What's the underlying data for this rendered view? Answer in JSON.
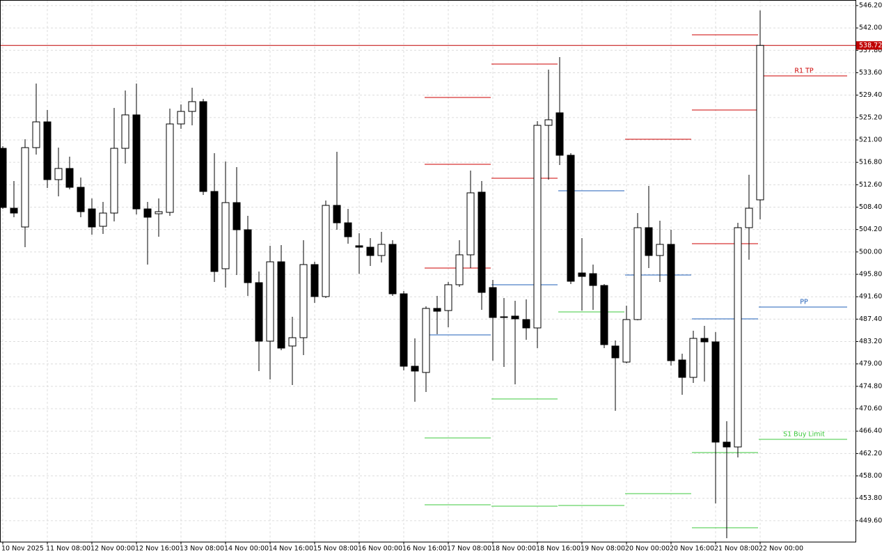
{
  "chart_data": {
    "type": "candlestick",
    "categories": [
      "10 Nov 2025",
      null,
      null,
      null,
      "11 Nov 08:00",
      null,
      null,
      null,
      "12 Nov 00:00",
      null,
      null,
      null,
      "12 Nov 16:00",
      null,
      null,
      null,
      "13 Nov 08:00",
      null,
      null,
      null,
      "14 Nov 00:00",
      null,
      null,
      null,
      "14 Nov 16:00",
      null,
      null,
      null,
      "15 Nov 08:00",
      null,
      null,
      null,
      "16 Nov 00:00",
      null,
      null,
      null,
      "16 Nov 16:00",
      null,
      null,
      null,
      "17 Nov 08:00",
      null,
      null,
      null,
      "18 Nov 00:00",
      null,
      null,
      null,
      "18 Nov 16:00",
      null,
      null,
      null,
      "19 Nov 08:00",
      null,
      null,
      null,
      "20 Nov 00:00",
      null,
      null,
      null,
      "20 Nov 16:00",
      null,
      null,
      null,
      "21 Nov 08:00",
      null,
      null,
      null,
      "22 Nov 00:00"
    ],
    "open": [
      519.43,
      508.2,
      504.68,
      519.56,
      524.39,
      513.56,
      515.65,
      512.12,
      508.07,
      504.81,
      507.29,
      519.43,
      525.7,
      508.07,
      507.16,
      507.42,
      524.0,
      526.35,
      528.18,
      511.34,
      496.85,
      509.25,
      504.16,
      494.24,
      483.27,
      498.15,
      482.36,
      483.92,
      497.63,
      491.63,
      508.73,
      505.46,
      501.16,
      500.89,
      499.33,
      501.42,
      492.15,
      478.57,
      477.4,
      489.41,
      489.01,
      493.85,
      499.46,
      511.21,
      493.32,
      487.71,
      487.97,
      487.32,
      485.75,
      523.74,
      526.09,
      518.13,
      496.06,
      495.93,
      493.71,
      482.36,
      479.35,
      487.32,
      504.55,
      499.33,
      501.42,
      479.74,
      476.48,
      483.79,
      483.14,
      464.34,
      463.43,
      504.55,
      509.77
    ],
    "high": [
      519.82,
      513.3,
      521.13,
      531.57,
      526.61,
      519.56,
      517.87,
      513.95,
      510.03,
      509.38,
      527.0,
      530.27,
      531.57,
      509.38,
      510.03,
      526.87,
      527.66,
      530.79,
      528.7,
      518.52,
      516.95,
      515.91,
      506.77,
      496.33,
      501.16,
      501.29,
      487.84,
      502.2,
      498.15,
      509.64,
      518.78,
      508.07,
      503.51,
      502.59,
      503.77,
      502.2,
      492.67,
      483.79,
      489.8,
      491.76,
      494.37,
      502.2,
      515.26,
      513.3,
      494.76,
      491.36,
      490.84,
      491.1,
      524.52,
      534.18,
      536.53,
      518.52,
      502.59,
      497.63,
      493.98,
      483.4,
      489.93,
      507.29,
      512.38,
      505.86,
      504.16,
      480.92,
      485.23,
      486.14,
      484.97,
      468.26,
      505.46,
      514.47,
      545.28
    ],
    "low": [
      508.07,
      506.51,
      500.89,
      518.26,
      511.99,
      510.43,
      511.73,
      506.51,
      503.24,
      503.37,
      505.73,
      516.56,
      507.03,
      497.63,
      502.85,
      506.77,
      523.09,
      523.74,
      510.69,
      494.37,
      493.32,
      495.67,
      491.76,
      477.66,
      476.09,
      481.57,
      475.05,
      480.66,
      490.45,
      491.36,
      504.16,
      501.55,
      495.89,
      497.37,
      498.02,
      491.76,
      477.79,
      471.91,
      473.74,
      484.58,
      485.88,
      493.45,
      496.98,
      489.15,
      479.61,
      478.44,
      475.18,
      483.53,
      481.97,
      513.56,
      516.3,
      493.98,
      489.01,
      489.15,
      481.97,
      470.22,
      479.09,
      487.19,
      496.98,
      494.37,
      478.7,
      473.22,
      475.44,
      475.7,
      452.85,
      446.33,
      461.47,
      498.54,
      506.12
    ],
    "close": [
      508.34,
      507.29,
      519.56,
      524.39,
      513.56,
      515.65,
      512.12,
      507.55,
      504.68,
      507.29,
      519.43,
      525.7,
      508.07,
      506.51,
      507.55,
      524.0,
      526.35,
      528.18,
      511.34,
      496.33,
      509.25,
      504.16,
      494.24,
      483.27,
      498.15,
      481.97,
      483.92,
      497.63,
      491.63,
      508.73,
      505.46,
      502.85,
      500.89,
      499.33,
      501.42,
      492.15,
      478.57,
      477.66,
      489.41,
      488.88,
      493.85,
      499.46,
      511.08,
      492.41,
      487.71,
      487.84,
      487.45,
      485.75,
      523.74,
      524.78,
      518.13,
      494.5,
      495.41,
      493.71,
      482.62,
      480.14,
      487.32,
      504.55,
      499.33,
      501.42,
      479.61,
      476.48,
      483.79,
      483.14,
      464.34,
      463.43,
      504.55,
      508.2,
      538.72
    ],
    "up_color": "#ffffff",
    "down_color": "#000000",
    "ylim": [
      445.67,
      547.24
    ],
    "yticks": [
      {
        "value": 546.2,
        "label": "546.20"
      },
      {
        "value": 542.0,
        "label": "542.00"
      },
      {
        "value": 537.8,
        "label": "537.80"
      },
      {
        "value": 533.6,
        "label": "533.60"
      },
      {
        "value": 529.4,
        "label": "529.40"
      },
      {
        "value": 525.2,
        "label": "525.20"
      },
      {
        "value": 521.0,
        "label": "521.00"
      },
      {
        "value": 516.8,
        "label": "516.80"
      },
      {
        "value": 512.6,
        "label": "512.60"
      },
      {
        "value": 508.4,
        "label": "508.40"
      },
      {
        "value": 504.2,
        "label": "504.20"
      },
      {
        "value": 500.0,
        "label": "500.00"
      },
      {
        "value": 495.8,
        "label": "495.80"
      },
      {
        "value": 491.6,
        "label": "491.60"
      },
      {
        "value": 487.4,
        "label": "487.40"
      },
      {
        "value": 483.2,
        "label": "483.20"
      },
      {
        "value": 479.0,
        "label": "479.00"
      },
      {
        "value": 474.8,
        "label": "474.80"
      },
      {
        "value": 470.6,
        "label": "470.60"
      },
      {
        "value": 466.4,
        "label": "466.40"
      },
      {
        "value": 462.2,
        "label": "462.20"
      },
      {
        "value": 458.0,
        "label": "458.00"
      },
      {
        "value": 453.8,
        "label": "453.80"
      },
      {
        "value": 449.6,
        "label": "449.60"
      }
    ],
    "grid": true,
    "current_price": {
      "value": 538.72,
      "color": "#c00000"
    },
    "pivot_levels": [
      [
        {
          "value": 528.96,
          "color": "#cc0000"
        },
        {
          "value": 516.43,
          "color": "#cc0000"
        },
        {
          "value": 496.98,
          "color": "#cc0000"
        },
        {
          "value": 484.45,
          "color": "#1f5fb8"
        },
        {
          "value": 465.12,
          "color": "#3cc83c"
        },
        {
          "value": 452.59,
          "color": "#3cc83c"
        }
      ],
      [
        {
          "value": 535.23,
          "color": "#cc0000"
        },
        {
          "value": 513.82,
          "color": "#cc0000"
        },
        {
          "value": 493.85,
          "color": "#1f5fb8"
        },
        {
          "value": 472.43,
          "color": "#3cc83c"
        },
        {
          "value": 452.33,
          "color": "#3cc83c"
        }
      ],
      [
        {
          "value": 511.47,
          "color": "#1f5fb8"
        },
        {
          "value": 488.75,
          "color": "#3cc83c"
        },
        {
          "value": 452.46,
          "color": "#3cc83c"
        }
      ],
      [
        {
          "value": 521.13,
          "color": "#cc0000"
        },
        {
          "value": 495.67,
          "color": "#1f5fb8"
        },
        {
          "value": 454.68,
          "color": "#3cc83c"
        }
      ],
      [
        {
          "value": 540.71,
          "color": "#cc0000"
        },
        {
          "value": 526.61,
          "color": "#cc0000"
        },
        {
          "value": 501.55,
          "color": "#cc0000"
        },
        {
          "value": 487.45,
          "color": "#1f5fb8"
        },
        {
          "value": 462.38,
          "color": "#3cc83c"
        },
        {
          "value": 448.28,
          "color": "#3cc83c"
        }
      ],
      [
        {
          "value": 533.01,
          "color": "#cc0000",
          "label": "R1 TP"
        },
        {
          "value": 489.67,
          "color": "#1f5fb8",
          "label": "PP"
        },
        {
          "value": 464.86,
          "color": "#3cc83c",
          "label": "S1 Buy Limit"
        }
      ]
    ]
  }
}
